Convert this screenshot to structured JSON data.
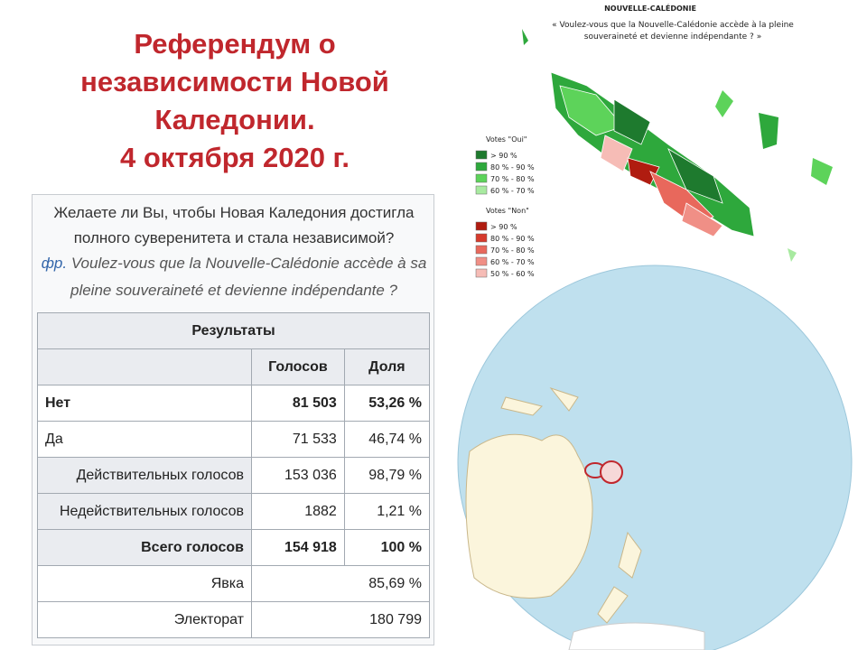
{
  "title": [
    "Референдум о",
    "независимости Новой",
    "Каледонии.",
    "4 октября 2020 г."
  ],
  "question": {
    "lines": [
      "Желаете ли Вы, чтобы Новая Каледония достигла",
      "полного суверенитета и стала независимой?"
    ],
    "lang": "фр.",
    "french_lines": [
      "Voulez-vous que la Nouvelle-Calédonie accède à sa",
      "pleine souveraineté et devienne indépendante ?"
    ]
  },
  "table": {
    "caption": "Результаты",
    "columns": [
      "Голосов",
      "Доля"
    ],
    "rows": [
      [
        "Нет",
        "81 503",
        "53,26 %"
      ],
      [
        "Да",
        "71 533",
        "46,74 %"
      ],
      [
        "Действительных голосов",
        "153 036",
        "98,79 %"
      ],
      [
        "Недействительных голосов",
        "1882",
        "1,21 %"
      ],
      [
        "Всего голосов",
        "154 918",
        "100 %"
      ],
      [
        "Явка",
        "85,69 %"
      ],
      [
        "Электорат",
        "180 799"
      ]
    ]
  },
  "map": {
    "title": "NOUVELLE-CALÉDONIE",
    "question": [
      "« Voulez-vous que la Nouvelle-Calédonie accède à la pleine",
      "souveraineté et devienne indépendante ? »"
    ],
    "legend_oui": {
      "title": "Votes \"Oui\"",
      "items": [
        {
          "label": "> 90 %",
          "color": "#1e7a2e"
        },
        {
          "label": "80 % - 90 %",
          "color": "#2ea83c"
        },
        {
          "label": "70 % - 80 %",
          "color": "#5dd35a"
        },
        {
          "label": "60 % - 70 %",
          "color": "#a8eaa0"
        }
      ]
    },
    "legend_non": {
      "title": "Votes \"Non\"",
      "items": [
        {
          "label": "> 90 %",
          "color": "#b01c10"
        },
        {
          "label": "80 % - 90 %",
          "color": "#d63a2c"
        },
        {
          "label": "70 % - 80 %",
          "color": "#e8685c"
        },
        {
          "label": "60 % - 70 %",
          "color": "#f08f86"
        },
        {
          "label": "50 % - 60 %",
          "color": "#f6bcb6"
        }
      ]
    }
  }
}
